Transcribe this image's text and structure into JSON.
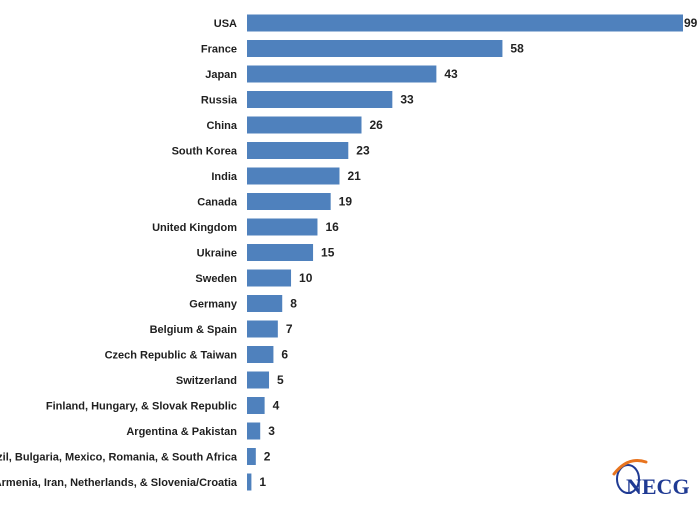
{
  "chart_data": {
    "type": "bar",
    "orientation": "horizontal",
    "categories": [
      "USA",
      "France",
      "Japan",
      "Russia",
      "China",
      "South Korea",
      "India",
      "Canada",
      "United Kingdom",
      "Ukraine",
      "Sweden",
      "Germany",
      "Belgium & Spain",
      "Czech Republic & Taiwan",
      "Switzerland",
      "Finland, Hungary, & Slovak Republic",
      "Argentina & Pakistan",
      "Brazil, Bulgaria, Mexico, Romania, & South Africa",
      "Armenia, Iran, Netherlands, & Slovenia/Croatia"
    ],
    "values": [
      99,
      58,
      43,
      33,
      26,
      23,
      21,
      19,
      16,
      15,
      10,
      8,
      7,
      6,
      5,
      4,
      3,
      2,
      1
    ],
    "xlim": [
      0,
      99
    ],
    "grid": false,
    "bar_color": "#4f81bd"
  },
  "logo": {
    "text": "NECG",
    "colors": {
      "text": "#1f3a93",
      "swoosh": "#e8741e",
      "ring": "#1f3a93"
    }
  }
}
